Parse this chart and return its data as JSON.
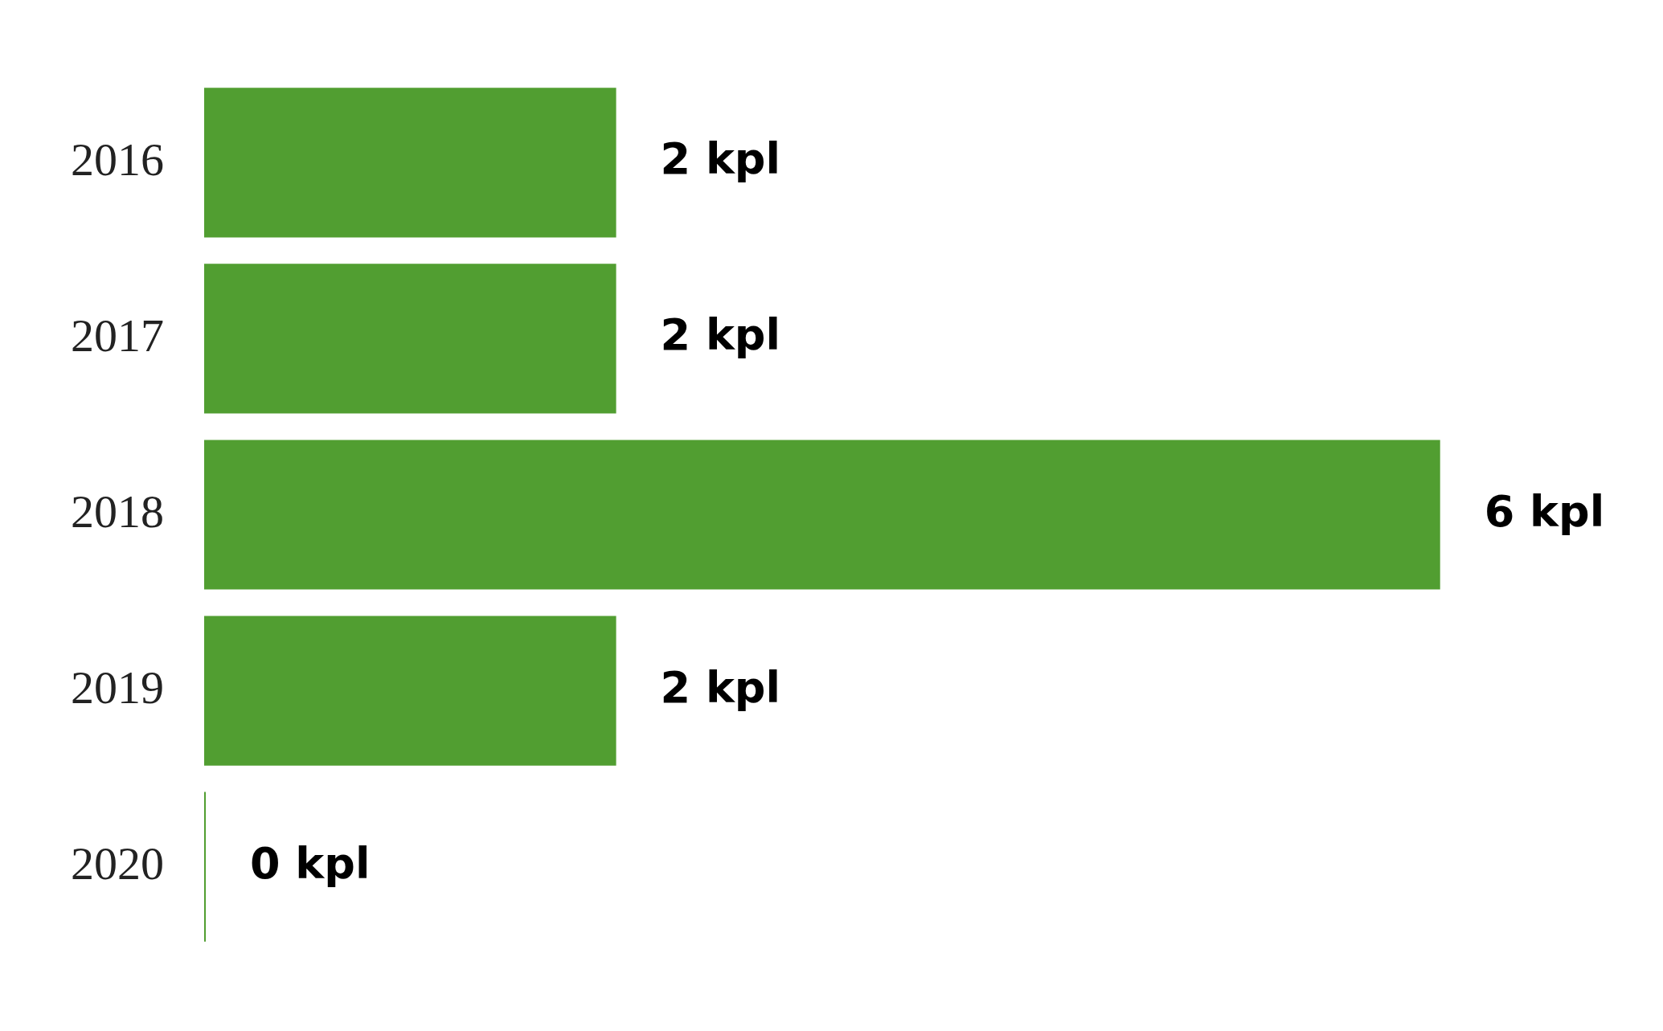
{
  "chart_data": {
    "type": "bar",
    "orientation": "horizontal",
    "categories": [
      "2016",
      "2017",
      "2018",
      "2019",
      "2020"
    ],
    "values": [
      2,
      2,
      6,
      2,
      0
    ],
    "value_labels": [
      "2 kpl",
      "2 kpl",
      "6 kpl",
      "2 kpl",
      "0 kpl"
    ],
    "color": "#519e31",
    "tick_labels": "y",
    "grid": false,
    "legend": false
  }
}
